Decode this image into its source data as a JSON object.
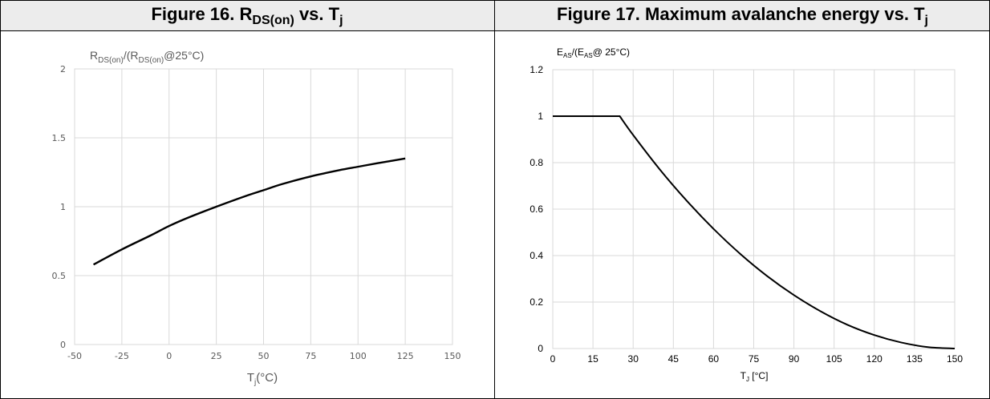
{
  "figures": [
    {
      "heading_main": "Figure 16. R",
      "heading_sub1": "DS(on)",
      "heading_mid": " vs. T",
      "heading_sub2": "j",
      "heading_tail": ""
    },
    {
      "heading_main": "Figure 17. Maximum avalanche energy vs. T",
      "heading_sub1": "j",
      "heading_mid": "",
      "heading_sub2": "",
      "heading_tail": ""
    }
  ],
  "chart_data": [
    {
      "type": "line",
      "ylabel_parts": [
        "R",
        "DS(on)",
        "/(R",
        "DS(on)",
        "@25°C)"
      ],
      "xlabel_parts": [
        "T",
        "j",
        "(°C)"
      ],
      "x_ticks": [
        "-50",
        "-25",
        "0",
        "25",
        "50",
        "75",
        "100",
        "125",
        "150"
      ],
      "y_ticks": [
        "0",
        "0.5",
        "1",
        "1.5",
        "2"
      ],
      "xlim": [
        -50,
        150
      ],
      "ylim": [
        0,
        2
      ],
      "grid": true,
      "series": [
        {
          "x": [
            -40,
            -25,
            -10,
            0,
            10,
            25,
            40,
            50,
            60,
            75,
            90,
            100,
            110,
            125
          ],
          "y": [
            0.58,
            0.69,
            0.79,
            0.86,
            0.92,
            1.0,
            1.075,
            1.12,
            1.165,
            1.22,
            1.265,
            1.29,
            1.315,
            1.35
          ]
        }
      ]
    },
    {
      "type": "line",
      "ylabel_parts": [
        "E",
        "AS",
        "/(E",
        "AS",
        "@ 25°C)"
      ],
      "xlabel_parts": [
        "T",
        "J",
        " [°C]"
      ],
      "x_ticks": [
        "0",
        "15",
        "30",
        "45",
        "60",
        "75",
        "90",
        "105",
        "120",
        "135",
        "150"
      ],
      "y_ticks": [
        "0",
        "0.2",
        "0.4",
        "0.6",
        "0.8",
        "1",
        "1.2"
      ],
      "xlim": [
        0,
        150
      ],
      "ylim": [
        0,
        1.2
      ],
      "grid": true,
      "series": [
        {
          "x": [
            0,
            25,
            30,
            40,
            50,
            60,
            70,
            80,
            90,
            100,
            110,
            120,
            130,
            140,
            150
          ],
          "y": [
            1.0,
            1.0,
            0.919,
            0.77,
            0.636,
            0.515,
            0.407,
            0.312,
            0.23,
            0.16,
            0.102,
            0.058,
            0.026,
            0.006,
            0.0
          ]
        }
      ]
    }
  ],
  "colors": {
    "line": "#000000",
    "grid": "#d9d9d9",
    "axis_text": "#595959",
    "header_bg": "#ececec"
  }
}
